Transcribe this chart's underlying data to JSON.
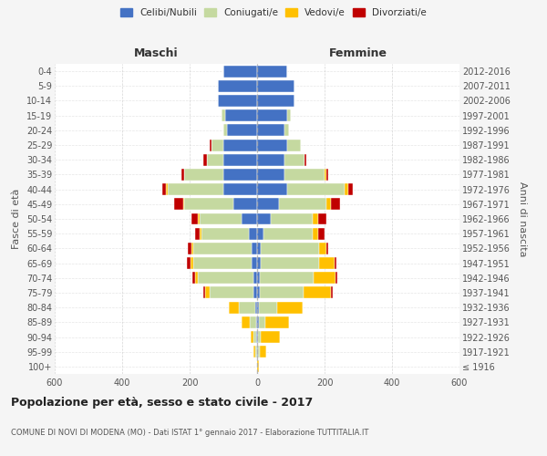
{
  "age_groups": [
    "100+",
    "95-99",
    "90-94",
    "85-89",
    "80-84",
    "75-79",
    "70-74",
    "65-69",
    "60-64",
    "55-59",
    "50-54",
    "45-49",
    "40-44",
    "35-39",
    "30-34",
    "25-29",
    "20-24",
    "15-19",
    "10-14",
    "5-9",
    "0-4"
  ],
  "birth_years": [
    "≤ 1916",
    "1917-1921",
    "1922-1926",
    "1927-1931",
    "1932-1936",
    "1937-1941",
    "1942-1946",
    "1947-1951",
    "1952-1956",
    "1957-1961",
    "1962-1966",
    "1967-1971",
    "1972-1976",
    "1977-1981",
    "1982-1986",
    "1987-1991",
    "1992-1996",
    "1997-2001",
    "2002-2006",
    "2007-2011",
    "2012-2016"
  ],
  "males": {
    "celibi": [
      0,
      0,
      2,
      2,
      5,
      10,
      10,
      15,
      15,
      25,
      45,
      70,
      100,
      100,
      100,
      100,
      90,
      95,
      115,
      115,
      100
    ],
    "coniugati": [
      0,
      5,
      8,
      20,
      50,
      130,
      165,
      175,
      175,
      140,
      125,
      145,
      165,
      115,
      50,
      35,
      10,
      10,
      0,
      0,
      0
    ],
    "vedovi": [
      0,
      5,
      10,
      25,
      30,
      15,
      8,
      8,
      5,
      5,
      5,
      5,
      5,
      0,
      0,
      0,
      0,
      0,
      0,
      0,
      0
    ],
    "divorziati": [
      0,
      0,
      0,
      0,
      0,
      5,
      8,
      10,
      10,
      15,
      20,
      25,
      10,
      10,
      10,
      5,
      0,
      0,
      0,
      0,
      0
    ]
  },
  "females": {
    "celibi": [
      0,
      2,
      2,
      5,
      5,
      8,
      8,
      10,
      10,
      20,
      40,
      65,
      90,
      80,
      80,
      90,
      80,
      90,
      110,
      110,
      90
    ],
    "coniugati": [
      0,
      5,
      10,
      20,
      55,
      130,
      160,
      175,
      175,
      145,
      125,
      140,
      170,
      120,
      60,
      40,
      15,
      10,
      0,
      0,
      0
    ],
    "vedovi": [
      5,
      20,
      55,
      70,
      75,
      80,
      65,
      45,
      20,
      15,
      15,
      15,
      10,
      5,
      0,
      0,
      0,
      0,
      0,
      0,
      0
    ],
    "divorziati": [
      0,
      0,
      0,
      0,
      0,
      5,
      5,
      5,
      5,
      20,
      25,
      25,
      15,
      5,
      5,
      0,
      0,
      0,
      0,
      0,
      0
    ]
  },
  "colors": {
    "celibi": "#4472c4",
    "coniugati": "#c5d9a0",
    "vedovi": "#ffc000",
    "divorziati": "#c00000"
  },
  "legend_labels": [
    "Celibi/Nubili",
    "Coniugati/e",
    "Vedovi/e",
    "Divorziati/e"
  ],
  "title": "Popolazione per età, sesso e stato civile - 2017",
  "subtitle": "COMUNE DI NOVI DI MODENA (MO) - Dati ISTAT 1° gennaio 2017 - Elaborazione TUTTITALIA.IT",
  "ylabel_left": "Fasce di età",
  "ylabel_right": "Anni di nascita",
  "xlabel_left": "Maschi",
  "xlabel_right": "Femmine",
  "xlim": 600,
  "bg_color": "#f5f5f5",
  "plot_bg_color": "#ffffff",
  "grid_color": "#cccccc"
}
